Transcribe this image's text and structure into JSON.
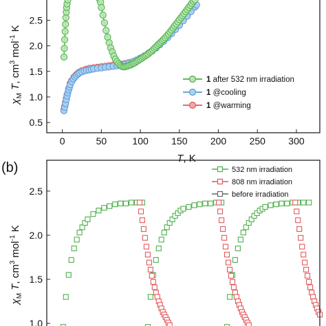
{
  "chart_data": [
    {
      "type": "scatter",
      "panel_label": "",
      "xlabel_italic": "T",
      "xlabel_rest": ", K",
      "ylabel_parts": [
        "χ",
        "M",
        " T",
        ", cm",
        "3",
        " mol",
        "-1",
        " K"
      ],
      "xlim": [
        -20,
        330
      ],
      "ylim": [
        0.3,
        2.95
      ],
      "xticks": [
        0,
        50,
        100,
        150,
        200,
        250,
        300
      ],
      "xtick_labels": [
        "0",
        "50",
        "100",
        "150",
        "200",
        "250",
        "300"
      ],
      "yticks": [
        0.5,
        1.0,
        1.5,
        2.0,
        2.5
      ],
      "ytick_labels": [
        "0.5",
        "1.0",
        "1.5",
        "2.0",
        "2.5"
      ],
      "legend_position": "lower-right",
      "series": [
        {
          "name_bold": "1",
          "name_rest": " after 532 nm irradiation",
          "color": "#4daf4a",
          "fill": "#b8e6b0",
          "marker": "circle",
          "x": [
            2,
            2.5,
            3,
            3.5,
            4,
            4.5,
            5,
            5.5,
            6,
            7,
            48,
            49,
            50,
            52,
            54,
            56,
            58,
            60,
            62,
            64,
            66,
            68,
            70,
            72,
            74,
            76,
            78,
            80,
            82,
            84,
            86,
            88,
            90,
            92,
            94,
            96,
            98,
            100,
            102,
            104,
            106,
            108,
            110,
            112,
            114,
            116,
            118,
            120,
            122,
            124,
            126,
            128,
            130,
            132,
            134,
            136,
            138,
            140,
            142,
            144,
            146,
            148,
            150,
            152,
            154,
            156,
            158,
            160,
            162,
            164,
            166,
            168,
            170
          ],
          "y": [
            1.78,
            1.95,
            2.12,
            2.28,
            2.42,
            2.55,
            2.66,
            2.75,
            2.82,
            2.9,
            2.9,
            2.85,
            2.75,
            2.6,
            2.45,
            2.3,
            2.17,
            2.06,
            1.96,
            1.88,
            1.8,
            1.74,
            1.69,
            1.65,
            1.62,
            1.6,
            1.59,
            1.59,
            1.6,
            1.61,
            1.62,
            1.63,
            1.65,
            1.66,
            1.68,
            1.7,
            1.72,
            1.74,
            1.76,
            1.78,
            1.8,
            1.82,
            1.84,
            1.87,
            1.89,
            1.92,
            1.95,
            1.98,
            2.01,
            2.04,
            2.07,
            2.1,
            2.13,
            2.16,
            2.2,
            2.23,
            2.27,
            2.31,
            2.35,
            2.39,
            2.43,
            2.47,
            2.51,
            2.55,
            2.59,
            2.63,
            2.67,
            2.71,
            2.75,
            2.79,
            2.83,
            2.87,
            2.9
          ]
        },
        {
          "name_bold": "1",
          "name_rest": " @cooling",
          "color": "#5b9bd5",
          "fill": "#a8d2f5",
          "marker": "circle",
          "x": [
            2,
            3,
            4,
            5,
            6,
            7,
            8,
            9,
            10,
            12,
            14,
            16,
            18,
            20,
            22,
            25,
            28,
            31,
            34,
            37,
            40,
            45,
            50,
            55,
            60,
            65,
            70,
            75,
            80,
            85,
            90,
            95,
            100,
            105,
            110,
            115,
            120,
            125,
            130,
            135,
            140,
            145,
            150,
            155,
            160,
            165,
            170,
            172
          ],
          "y": [
            0.73,
            0.8,
            0.87,
            0.95,
            1.02,
            1.08,
            1.14,
            1.19,
            1.24,
            1.3,
            1.35,
            1.39,
            1.42,
            1.45,
            1.47,
            1.49,
            1.51,
            1.52,
            1.53,
            1.54,
            1.55,
            1.56,
            1.57,
            1.58,
            1.59,
            1.6,
            1.61,
            1.62,
            1.64,
            1.66,
            1.69,
            1.72,
            1.76,
            1.8,
            1.85,
            1.9,
            1.96,
            2.02,
            2.09,
            2.16,
            2.24,
            2.32,
            2.4,
            2.49,
            2.58,
            2.67,
            2.76,
            2.8
          ]
        },
        {
          "name_bold": "1",
          "name_rest": " @warming",
          "color": "#e15759",
          "fill": "#f2a6a6",
          "marker": "circle",
          "x": [
            2,
            3,
            4,
            5,
            6,
            8,
            10,
            12,
            15,
            18,
            21,
            25,
            30,
            35,
            40,
            45,
            50,
            55,
            60,
            65,
            70,
            75,
            80,
            85,
            90,
            95,
            100,
            105,
            110,
            115,
            120,
            125,
            130,
            135,
            140,
            145,
            150,
            155,
            160,
            165,
            170
          ],
          "y": [
            0.75,
            0.82,
            0.89,
            0.97,
            1.04,
            1.16,
            1.26,
            1.32,
            1.39,
            1.44,
            1.48,
            1.51,
            1.54,
            1.56,
            1.57,
            1.58,
            1.59,
            1.6,
            1.61,
            1.62,
            1.63,
            1.64,
            1.65,
            1.67,
            1.69,
            1.72,
            1.76,
            1.8,
            1.85,
            1.9,
            1.96,
            2.03,
            2.1,
            2.17,
            2.25,
            2.33,
            2.41,
            2.5,
            2.59,
            2.68,
            2.77
          ]
        }
      ]
    },
    {
      "type": "scatter",
      "panel_label": "(b)",
      "ylabel_parts": [
        "χ",
        "M",
        " T",
        ", cm",
        "3",
        " mol",
        "-1",
        " K"
      ],
      "xlim": [
        0,
        100
      ],
      "ylim": [
        0.9,
        2.85
      ],
      "yticks": [
        1.0,
        1.5,
        2.0,
        2.5
      ],
      "ytick_labels": [
        "1.0",
        "1.5",
        "2.0",
        "2.5"
      ],
      "legend_position": "top-right",
      "legend": [
        {
          "label": "532 nm irradiation",
          "color": "#4daf4a"
        },
        {
          "label": "808 nm irradiation",
          "color": "#e15759"
        },
        {
          "label": "before irradiation",
          "color": "#666666"
        }
      ],
      "series": [
        {
          "name": "532 nm irradiation",
          "color": "#4daf4a",
          "marker": "square",
          "x": [
            6,
            7,
            8,
            9,
            10,
            11,
            12,
            13,
            14,
            15,
            17,
            19,
            21,
            23,
            25,
            27,
            29,
            31,
            33,
            35,
            37,
            38,
            39,
            40,
            41,
            42,
            43,
            44,
            45,
            46,
            47,
            48,
            49,
            50,
            52,
            54,
            56,
            58,
            60,
            62,
            64,
            66,
            67,
            68,
            69,
            70,
            71,
            72,
            73,
            74,
            75,
            76,
            77,
            78,
            79,
            80,
            82,
            84,
            86,
            88,
            90,
            92,
            94,
            96
          ],
          "y": [
            0.96,
            1.3,
            1.55,
            1.72,
            1.85,
            1.95,
            2.03,
            2.09,
            2.14,
            2.18,
            2.24,
            2.28,
            2.31,
            2.33,
            2.35,
            2.36,
            2.36,
            2.37,
            2.37,
            2.37,
            0.96,
            1.3,
            1.55,
            1.72,
            1.85,
            1.95,
            2.03,
            2.09,
            2.14,
            2.18,
            2.22,
            2.25,
            2.28,
            2.3,
            2.32,
            2.34,
            2.35,
            2.36,
            2.36,
            2.37,
            2.37,
            0.96,
            1.3,
            1.55,
            1.72,
            1.85,
            1.95,
            2.03,
            2.09,
            2.14,
            2.18,
            2.22,
            2.25,
            2.28,
            2.3,
            2.32,
            2.34,
            2.35,
            2.36,
            2.36,
            2.37,
            2.37,
            2.37,
            2.37
          ]
        },
        {
          "name": "808 nm irradiation",
          "color": "#e15759",
          "marker": "square",
          "x": [
            34,
            34.5,
            35,
            35.5,
            36,
            36.5,
            37,
            37.5,
            38,
            38.5,
            39,
            39.5,
            40,
            40.5,
            41,
            41.5,
            42,
            42.5,
            43,
            43.5,
            44,
            44.5,
            45,
            63,
            63.5,
            64,
            64.5,
            65,
            65.5,
            66,
            66.5,
            67,
            67.5,
            68,
            68.5,
            69,
            69.5,
            70,
            70.5,
            71,
            71.5,
            72,
            72.5,
            73,
            73.5,
            74,
            91,
            91.5,
            92,
            92.5,
            93,
            93.5,
            94,
            94.5,
            95,
            95.5,
            96,
            96.5,
            97,
            97.5,
            98,
            98.5,
            99,
            99.5,
            100
          ],
          "y": [
            2.37,
            2.27,
            2.17,
            2.07,
            1.97,
            1.87,
            1.78,
            1.69,
            1.61,
            1.54,
            1.47,
            1.41,
            1.35,
            1.3,
            1.25,
            1.21,
            1.17,
            1.13,
            1.1,
            1.07,
            1.04,
            1.01,
            0.98,
            2.37,
            2.27,
            2.17,
            2.07,
            1.97,
            1.87,
            1.78,
            1.69,
            1.61,
            1.54,
            1.47,
            1.41,
            1.35,
            1.3,
            1.25,
            1.21,
            1.17,
            1.13,
            1.1,
            1.07,
            1.04,
            1.01,
            0.98,
            2.37,
            2.27,
            2.17,
            2.07,
            1.97,
            1.87,
            1.78,
            1.69,
            1.61,
            1.54,
            1.47,
            1.41,
            1.35,
            1.3,
            1.25,
            1.21,
            1.17,
            1.13,
            1.1
          ]
        }
      ]
    }
  ]
}
